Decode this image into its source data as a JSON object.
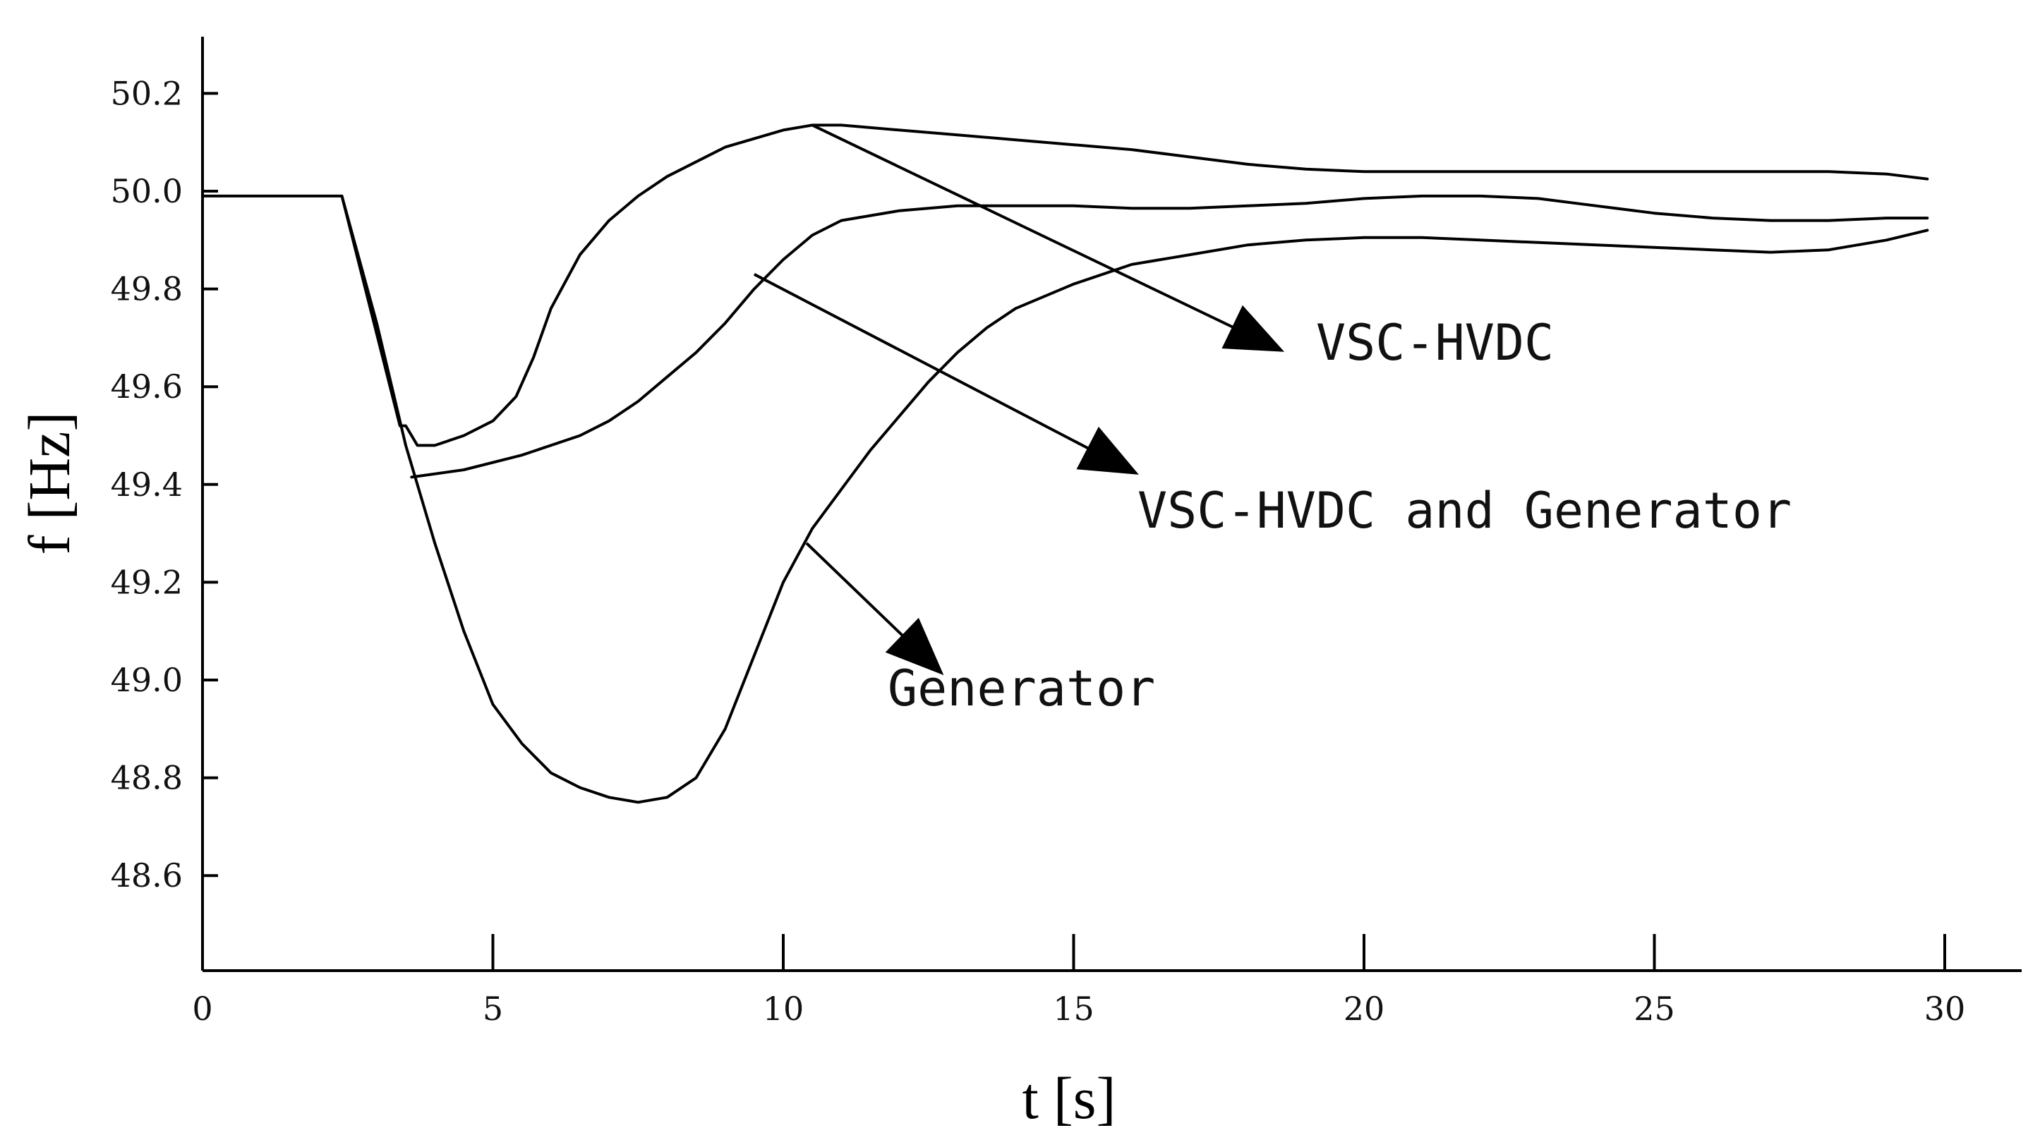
{
  "chart_data": {
    "type": "line",
    "title": "",
    "xlabel": "t [s]",
    "ylabel": "f [Hz]",
    "xlim": [
      0,
      31
    ],
    "ylim": [
      48.4,
      50.3
    ],
    "x_ticks": [
      0,
      5,
      10,
      15,
      20,
      25,
      30
    ],
    "x_tick_labels": [
      "0",
      "5",
      "10",
      "15",
      "20",
      "25",
      "30"
    ],
    "y_ticks": [
      48.6,
      48.8,
      49.0,
      49.2,
      49.4,
      49.6,
      49.8,
      50.0,
      50.2
    ],
    "y_tick_labels": [
      "48.6",
      "48.8",
      "49.0",
      "49.2",
      "49.4",
      "49.6",
      "49.8",
      "50.0",
      "50.2"
    ],
    "grid": false,
    "series": [
      {
        "name": "VSC-HVDC",
        "x": [
          0,
          2.4,
          3.4,
          3.5,
          3.6,
          3.7,
          4.0,
          4.5,
          5.0,
          5.4,
          5.7,
          6.0,
          6.5,
          7.0,
          7.5,
          8.0,
          9.0,
          10.0,
          10.5,
          11.0,
          12.0,
          13.0,
          14.0,
          15.0,
          16.0,
          17.0,
          18.0,
          19.0,
          20.0,
          22.0,
          24.0,
          26.0,
          28.0,
          29.0,
          29.7
        ],
        "y": [
          49.99,
          49.99,
          49.52,
          49.52,
          49.5,
          49.48,
          49.48,
          49.5,
          49.53,
          49.58,
          49.66,
          49.76,
          49.87,
          49.94,
          49.99,
          50.03,
          50.09,
          50.125,
          50.135,
          50.135,
          50.125,
          50.115,
          50.105,
          50.095,
          50.085,
          50.07,
          50.055,
          50.045,
          50.04,
          50.04,
          50.04,
          50.04,
          50.04,
          50.035,
          50.025
        ]
      },
      {
        "name": "VSC-HVDC and Generator",
        "x": [
          3.6,
          4.5,
          5.5,
          6.5,
          7.0,
          7.5,
          8.0,
          8.5,
          9.0,
          9.5,
          10.0,
          10.5,
          11.0,
          12.0,
          13.0,
          14.0,
          15.0,
          16.0,
          17.0,
          18.0,
          19.0,
          20.0,
          21.0,
          22.0,
          23.0,
          24.0,
          25.0,
          26.0,
          27.0,
          28.0,
          29.0,
          29.7
        ],
        "y": [
          49.415,
          49.43,
          49.46,
          49.5,
          49.53,
          49.57,
          49.62,
          49.67,
          49.73,
          49.8,
          49.86,
          49.91,
          49.94,
          49.96,
          49.97,
          49.97,
          49.97,
          49.965,
          49.965,
          49.97,
          49.975,
          49.985,
          49.99,
          49.99,
          49.985,
          49.97,
          49.955,
          49.945,
          49.94,
          49.94,
          49.945,
          49.945
        ]
      },
      {
        "name": "Generator",
        "x": [
          2.4,
          3.0,
          3.5,
          4.0,
          4.5,
          5.0,
          5.5,
          6.0,
          6.5,
          7.0,
          7.5,
          8.0,
          8.5,
          9.0,
          9.5,
          10.0,
          10.5,
          11.0,
          11.5,
          12.0,
          12.5,
          13.0,
          13.5,
          14.0,
          15.0,
          16.0,
          17.0,
          18.0,
          19.0,
          20.0,
          21.0,
          22.0,
          23.0,
          24.0,
          25.0,
          26.0,
          27.0,
          28.0,
          29.0,
          29.7
        ],
        "y": [
          49.99,
          49.73,
          49.48,
          49.28,
          49.1,
          48.95,
          48.87,
          48.81,
          48.78,
          48.76,
          48.75,
          48.76,
          48.8,
          48.9,
          49.05,
          49.2,
          49.31,
          49.39,
          49.47,
          49.54,
          49.61,
          49.67,
          49.72,
          49.76,
          49.81,
          49.85,
          49.87,
          49.89,
          49.9,
          49.905,
          49.905,
          49.9,
          49.895,
          49.89,
          49.885,
          49.88,
          49.875,
          49.88,
          49.9,
          49.92
        ]
      }
    ],
    "annotations": [
      {
        "text": "VSC-HVDC",
        "series": "VSC-HVDC",
        "from": [
          10.5,
          50.135
        ],
        "to": [
          18.3,
          49.69
        ]
      },
      {
        "text": "VSC-HVDC and Generator",
        "series": "VSC-HVDC and Generator",
        "from": [
          9.5,
          49.83
        ],
        "to": [
          15.8,
          49.44
        ]
      },
      {
        "text": "Generator",
        "series": "Generator",
        "from": [
          10.4,
          49.28
        ],
        "to": [
          12.5,
          49.04
        ]
      }
    ]
  }
}
